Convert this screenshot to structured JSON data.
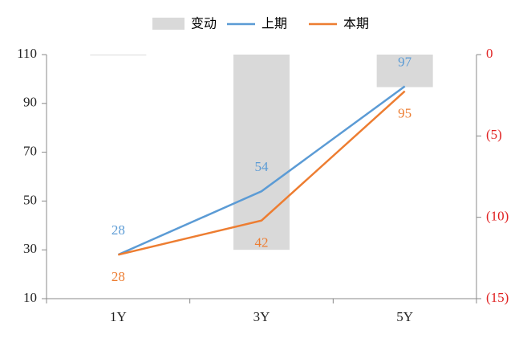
{
  "chart_data": {
    "type": "combo",
    "categories": [
      "1Y",
      "3Y",
      "5Y"
    ],
    "bars": {
      "name": "变动",
      "color": "#d9d9d9",
      "values": [
        0,
        -12,
        -2
      ],
      "axis": "y2"
    },
    "series": [
      {
        "name": "上期",
        "color": "#5b9bd5",
        "values": [
          28,
          54,
          97
        ]
      },
      {
        "name": "本期",
        "color": "#ed7d31",
        "values": [
          28,
          42,
          95
        ]
      }
    ],
    "ylim": [
      10,
      110
    ],
    "yticks": [
      10,
      30,
      50,
      70,
      90,
      110
    ],
    "y2lim": [
      -15,
      0
    ],
    "y2ticks": [
      {
        "value": -15,
        "label": "(15)"
      },
      {
        "value": -10,
        "label": "(10)"
      },
      {
        "value": -5,
        "label": "(5)"
      },
      0
    ],
    "y2color": "#e02020",
    "legend": "top"
  }
}
